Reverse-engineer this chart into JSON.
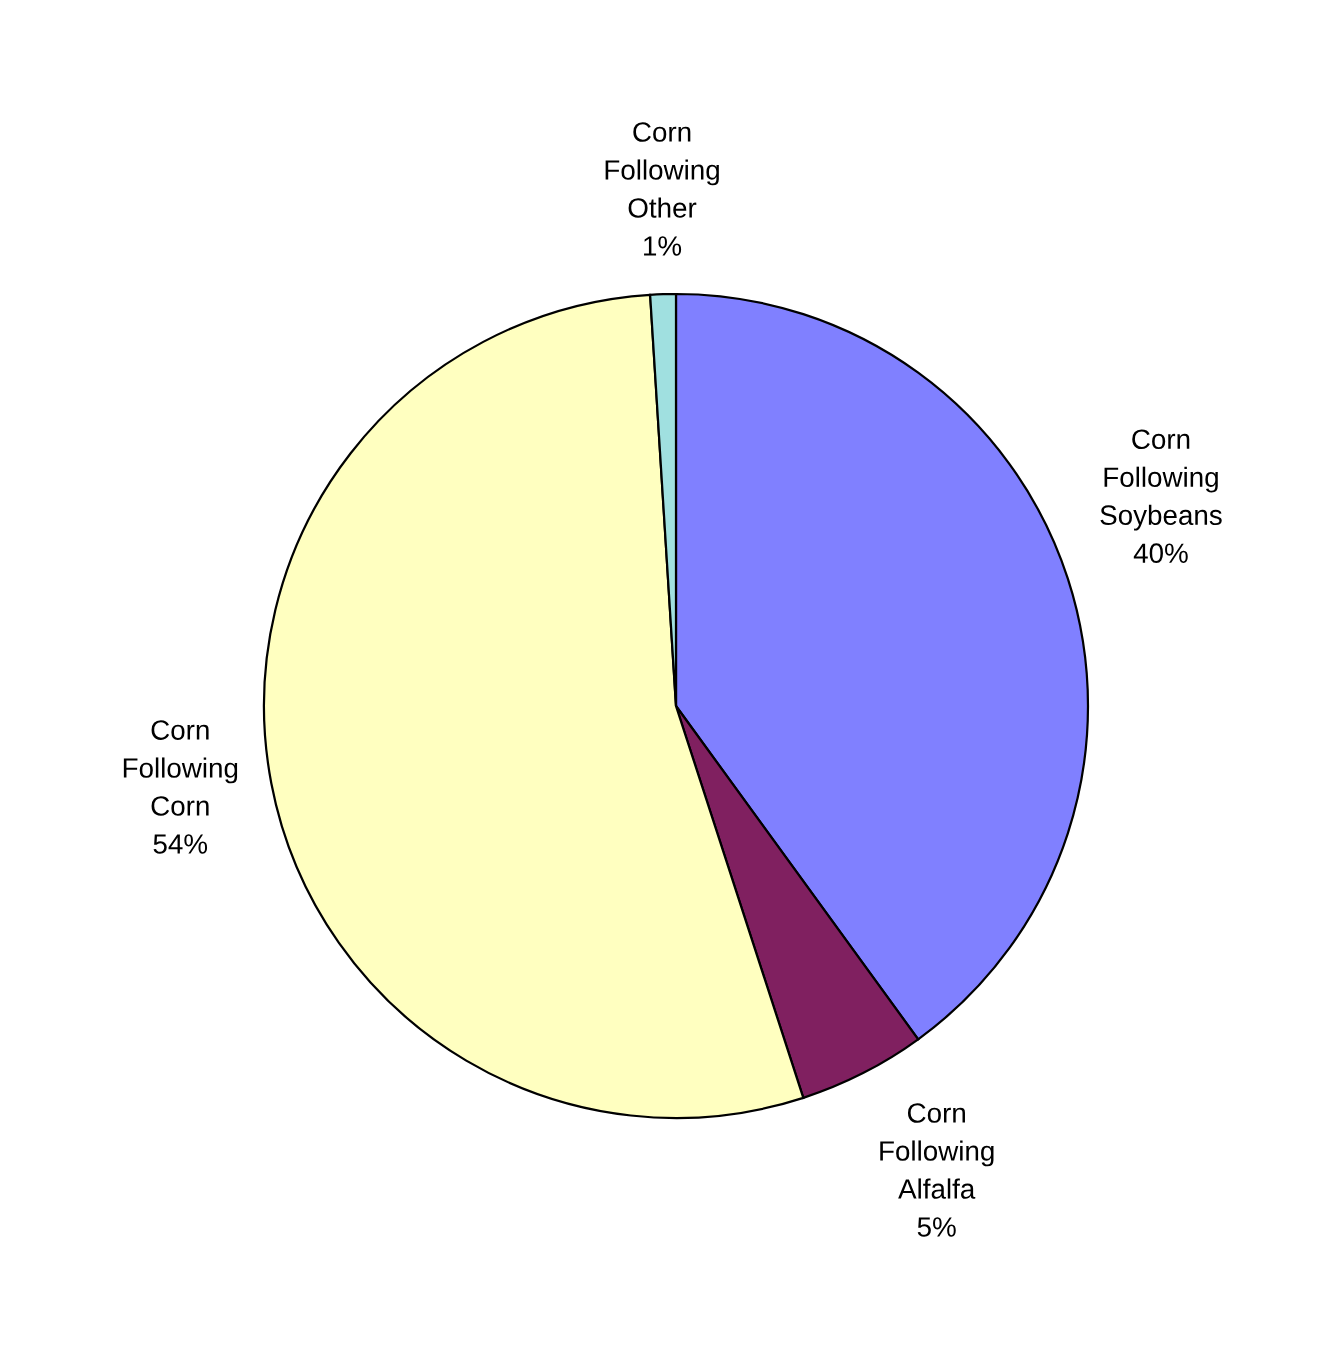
{
  "chart_data": {
    "type": "pie",
    "categories": [
      "Corn Following Soybeans",
      "Corn Following Alfalfa",
      "Corn Following Corn",
      "Corn Following Other"
    ],
    "values": [
      40,
      5,
      54,
      1
    ],
    "value_labels": [
      "40%",
      "5%",
      "54%",
      "1%"
    ],
    "colors": [
      "#8080ff",
      "#802060",
      "#ffffc0",
      "#a0e0e0"
    ]
  }
}
